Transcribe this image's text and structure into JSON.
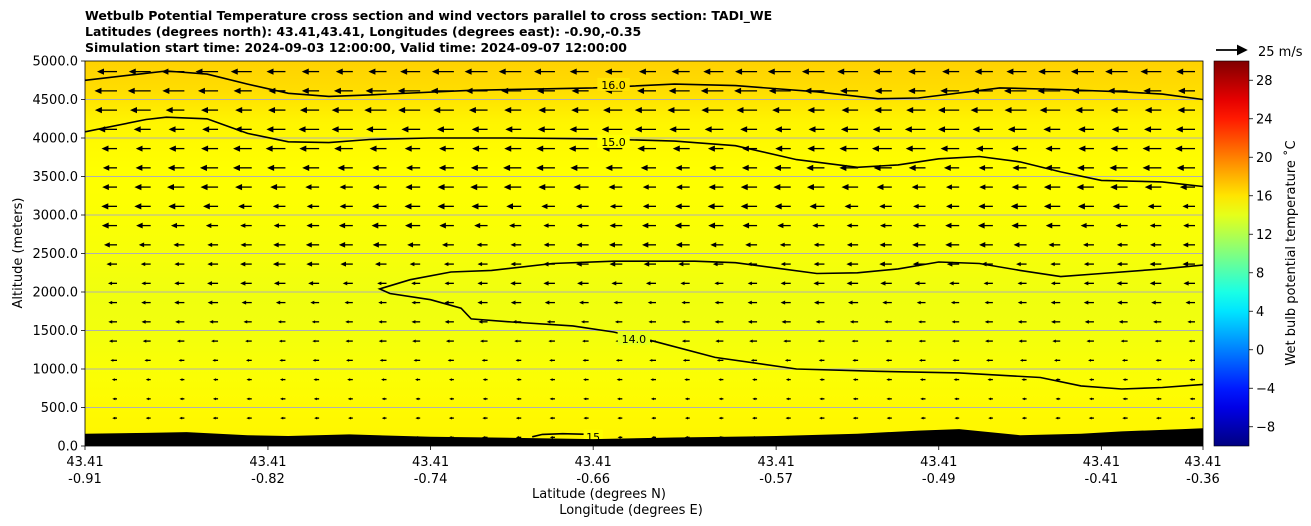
{
  "chart_data": {
    "type": "heatmap",
    "title_lines": [
      "Wetbulb Potential Temperature cross section and wind vectors parallel to cross section: TADI_WE",
      "Latitudes (degrees north): 43.41,43.41, Longitudes (degrees east): -0.90,-0.35",
      "Simulation start time: 2024-09-03 12:00:00, Valid time: 2024-09-07 12:00:00"
    ],
    "ylabel": "Altitude (meters)",
    "xlabel_lat": "Latitude (degrees N)",
    "xlabel_lon": "Longitude (degrees E)",
    "ylim": [
      0,
      5000
    ],
    "y_ticks": [
      "0.0",
      "500.0",
      "1000.0",
      "1500.0",
      "2000.0",
      "2500.0",
      "3000.0",
      "3500.0",
      "4000.0",
      "4500.0",
      "5000.0"
    ],
    "y_tick_values": [
      0,
      500,
      1000,
      1500,
      2000,
      2500,
      3000,
      3500,
      4000,
      4500,
      5000
    ],
    "x_ticks_lat": [
      "43.41",
      "43.41",
      "43.41",
      "43.41",
      "43.41",
      "43.41",
      "43.41",
      "43.41"
    ],
    "x_ticks_lon": [
      "-0.91",
      "-0.82",
      "-0.74",
      "-0.66",
      "-0.57",
      "-0.49",
      "-0.41",
      "-0.36"
    ],
    "x_tick_values": [
      -0.91,
      -0.82,
      -0.74,
      -0.66,
      -0.57,
      -0.49,
      -0.41,
      -0.36
    ],
    "xlim": [
      -0.91,
      -0.36
    ],
    "grid": "horizontal",
    "colorbar": {
      "label": "Wet bulb potential temperature ˚C",
      "ticks": [
        "−8",
        "−4",
        "0",
        "4",
        "8",
        "12",
        "16",
        "20",
        "24",
        "28"
      ],
      "tick_values": [
        -8,
        -4,
        0,
        4,
        8,
        12,
        16,
        20,
        24,
        28
      ],
      "range": [
        -10,
        30
      ],
      "colormap": "jet"
    },
    "quiver_key": {
      "label": "25 m/s",
      "speed": 25
    },
    "contours": [
      {
        "level": 16.0,
        "label": "16.0",
        "label_at": [
          -0.65,
          4690
        ],
        "points": [
          [
            -0.91,
            4750
          ],
          [
            -0.88,
            4840
          ],
          [
            -0.87,
            4870
          ],
          [
            -0.85,
            4830
          ],
          [
            -0.83,
            4700
          ],
          [
            -0.81,
            4580
          ],
          [
            -0.79,
            4540
          ],
          [
            -0.77,
            4560
          ],
          [
            -0.72,
            4620
          ],
          [
            -0.66,
            4650
          ],
          [
            -0.62,
            4700
          ],
          [
            -0.59,
            4680
          ],
          [
            -0.55,
            4600
          ],
          [
            -0.52,
            4510
          ],
          [
            -0.5,
            4520
          ],
          [
            -0.46,
            4650
          ],
          [
            -0.43,
            4630
          ],
          [
            -0.4,
            4600
          ],
          [
            -0.38,
            4570
          ],
          [
            -0.36,
            4500
          ]
        ]
      },
      {
        "level": 15.0,
        "label": "15.0",
        "label_at": [
          -0.65,
          3950
        ],
        "points": [
          [
            -0.91,
            4080
          ],
          [
            -0.88,
            4240
          ],
          [
            -0.87,
            4270
          ],
          [
            -0.85,
            4250
          ],
          [
            -0.83,
            4060
          ],
          [
            -0.81,
            3950
          ],
          [
            -0.79,
            3940
          ],
          [
            -0.77,
            3980
          ],
          [
            -0.74,
            4000
          ],
          [
            -0.7,
            4000
          ],
          [
            -0.66,
            3990
          ],
          [
            -0.62,
            3960
          ],
          [
            -0.59,
            3900
          ],
          [
            -0.56,
            3720
          ],
          [
            -0.53,
            3620
          ],
          [
            -0.51,
            3650
          ],
          [
            -0.49,
            3730
          ],
          [
            -0.47,
            3760
          ],
          [
            -0.45,
            3690
          ],
          [
            -0.43,
            3560
          ],
          [
            -0.41,
            3450
          ],
          [
            -0.38,
            3430
          ],
          [
            -0.36,
            3370
          ]
        ]
      },
      {
        "level": 14.0,
        "label": "14.0",
        "label_at": [
          -0.64,
          1390
        ],
        "points": [
          [
            -0.36,
            2350
          ],
          [
            -0.38,
            2300
          ],
          [
            -0.41,
            2240
          ],
          [
            -0.43,
            2200
          ],
          [
            -0.45,
            2280
          ],
          [
            -0.47,
            2370
          ],
          [
            -0.49,
            2390
          ],
          [
            -0.51,
            2300
          ],
          [
            -0.53,
            2250
          ],
          [
            -0.55,
            2240
          ],
          [
            -0.57,
            2310
          ],
          [
            -0.59,
            2380
          ],
          [
            -0.61,
            2400
          ],
          [
            -0.65,
            2400
          ],
          [
            -0.68,
            2370
          ],
          [
            -0.71,
            2280
          ],
          [
            -0.73,
            2260
          ],
          [
            -0.75,
            2160
          ],
          [
            -0.765,
            2040
          ],
          [
            -0.76,
            1980
          ],
          [
            -0.74,
            1900
          ],
          [
            -0.725,
            1790
          ],
          [
            -0.72,
            1650
          ],
          [
            -0.7,
            1610
          ],
          [
            -0.67,
            1560
          ],
          [
            -0.65,
            1480
          ],
          [
            -0.63,
            1360
          ],
          [
            -0.6,
            1150
          ],
          [
            -0.56,
            1000
          ],
          [
            -0.52,
            970
          ],
          [
            -0.48,
            950
          ],
          [
            -0.44,
            890
          ],
          [
            -0.42,
            780
          ],
          [
            -0.4,
            740
          ],
          [
            -0.38,
            760
          ],
          [
            -0.36,
            800
          ]
        ]
      },
      {
        "level": 15.0,
        "label": "15",
        "label_at": [
          -0.66,
          120
        ],
        "points": [
          [
            -0.69,
            120
          ],
          [
            -0.685,
            150
          ],
          [
            -0.675,
            160
          ],
          [
            -0.66,
            150
          ]
        ]
      }
    ],
    "terrain": [
      [
        -0.91,
        160
      ],
      [
        -0.88,
        170
      ],
      [
        -0.86,
        180
      ],
      [
        -0.83,
        140
      ],
      [
        -0.81,
        130
      ],
      [
        -0.78,
        150
      ],
      [
        -0.74,
        120
      ],
      [
        -0.71,
        110
      ],
      [
        -0.66,
        90
      ],
      [
        -0.62,
        110
      ],
      [
        -0.57,
        130
      ],
      [
        -0.53,
        160
      ],
      [
        -0.5,
        200
      ],
      [
        -0.48,
        220
      ],
      [
        -0.45,
        140
      ],
      [
        -0.42,
        160
      ],
      [
        -0.4,
        190
      ],
      [
        -0.37,
        220
      ],
      [
        -0.36,
        230
      ]
    ],
    "temperature_levels": [
      [
        5000,
        16.8
      ],
      [
        4600,
        16.3
      ],
      [
        4200,
        15.4
      ],
      [
        3600,
        15.0
      ],
      [
        3000,
        14.9
      ],
      [
        2500,
        14.7
      ],
      [
        2000,
        14.4
      ],
      [
        1500,
        14.5
      ],
      [
        1000,
        14.8
      ],
      [
        500,
        15.2
      ],
      [
        0,
        15.4
      ]
    ]
  }
}
